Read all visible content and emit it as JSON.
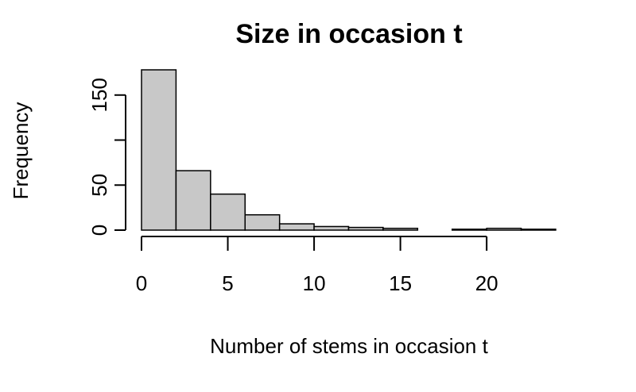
{
  "chart_data": {
    "type": "bar",
    "title": "Size in occasion t",
    "xlabel": "Number of stems in occasion t",
    "ylabel": "Frequency",
    "bin_edges": [
      0,
      2,
      4,
      6,
      8,
      10,
      12,
      14,
      16,
      18,
      20,
      22,
      24
    ],
    "values": [
      178,
      66,
      40,
      17,
      7,
      4,
      3,
      2,
      0,
      1,
      2,
      1
    ],
    "xlim": [
      0,
      24
    ],
    "ylim": [
      0,
      178
    ],
    "x_ticks": [
      0,
      5,
      10,
      15,
      20
    ],
    "y_ticks": [
      0,
      50,
      150
    ],
    "grid": false,
    "colors": {
      "bar_fill": "#c8c8c8",
      "bar_stroke": "#000000"
    }
  }
}
